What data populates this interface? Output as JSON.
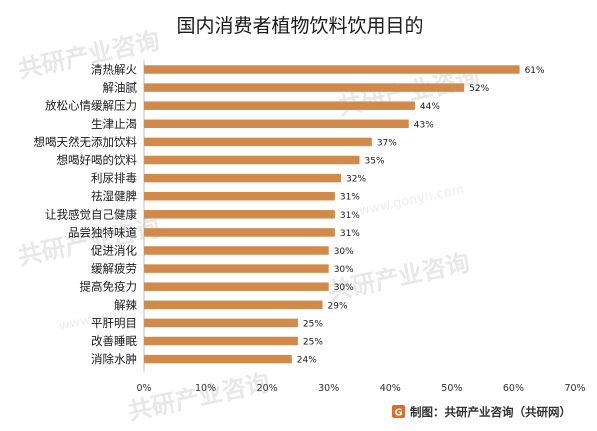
{
  "chart_data": {
    "type": "bar",
    "orientation": "horizontal",
    "title": "国内消费者植物饮料饮用目的",
    "categories": [
      "清热解火",
      "解油腻",
      "放松心情缓解压力",
      "生津止渴",
      "想喝天然无添加饮料",
      "想喝好喝的饮料",
      "利尿排毒",
      "祛湿健脾",
      "让我感觉自己健康",
      "品尝独特味道",
      "促进消化",
      "缓解疲劳",
      "提高免疫力",
      "解辣",
      "平肝明目",
      "改善睡眠",
      "消除水肿"
    ],
    "values": [
      61,
      52,
      44,
      43,
      37,
      35,
      32,
      31,
      31,
      31,
      30,
      30,
      30,
      29,
      25,
      25,
      24
    ],
    "value_labels": [
      "61%",
      "52%",
      "44%",
      "43%",
      "37%",
      "35%",
      "32%",
      "31%",
      "31%",
      "31%",
      "30%",
      "30%",
      "30%",
      "29%",
      "25%",
      "25%",
      "24%"
    ],
    "x_ticks": [
      "0%",
      "10%",
      "20%",
      "30%",
      "40%",
      "50%",
      "60%",
      "70%"
    ],
    "xlim": [
      0,
      70
    ],
    "grid": false,
    "bar_color": "#d28a4a",
    "source": "制图：共研产业咨询（共研网）"
  },
  "watermark": {
    "brand": "共研产业咨询",
    "url": "www.gonyn.com"
  }
}
